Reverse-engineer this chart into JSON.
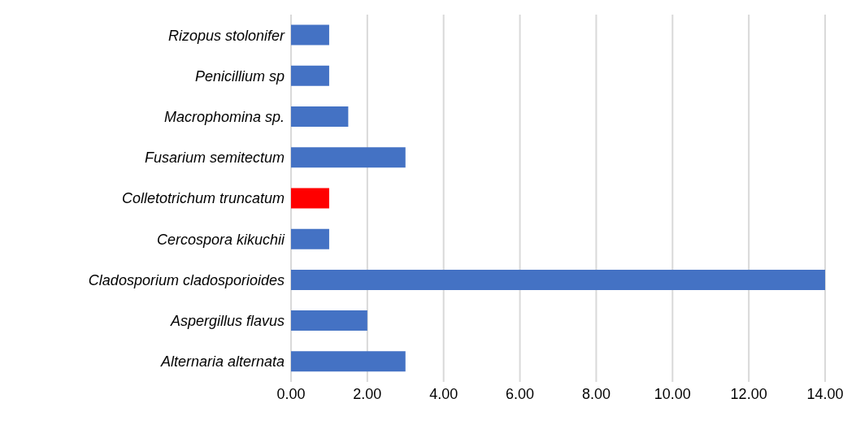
{
  "chart_data": {
    "type": "bar",
    "orientation": "horizontal",
    "categories": [
      "Rizopus stolonifer",
      "Penicillium sp",
      "Macrophomina sp.",
      "Fusarium semitectum",
      "Colletotrichum truncatum",
      "Cercospora kikuchii",
      "Cladosporium cladosporioides",
      "Aspergillus flavus",
      "Alternaria alternata"
    ],
    "values": [
      1,
      1,
      1.5,
      3,
      1,
      1,
      14,
      2,
      3
    ],
    "colors": [
      "#4472c4",
      "#4472c4",
      "#4472c4",
      "#4472c4",
      "#ff0000",
      "#4472c4",
      "#4472c4",
      "#4472c4",
      "#4472c4"
    ],
    "xlim": [
      0,
      14
    ],
    "xticks": [
      {
        "value": 0,
        "label": "0.00"
      },
      {
        "value": 2,
        "label": "2.00"
      },
      {
        "value": 4,
        "label": "4.00"
      },
      {
        "value": 6,
        "label": "6.00"
      },
      {
        "value": 8,
        "label": "8.00"
      },
      {
        "value": 10,
        "label": "10.00"
      },
      {
        "value": 12,
        "label": "12.00"
      },
      {
        "value": 14,
        "label": "14.00"
      }
    ],
    "grid": "x"
  }
}
